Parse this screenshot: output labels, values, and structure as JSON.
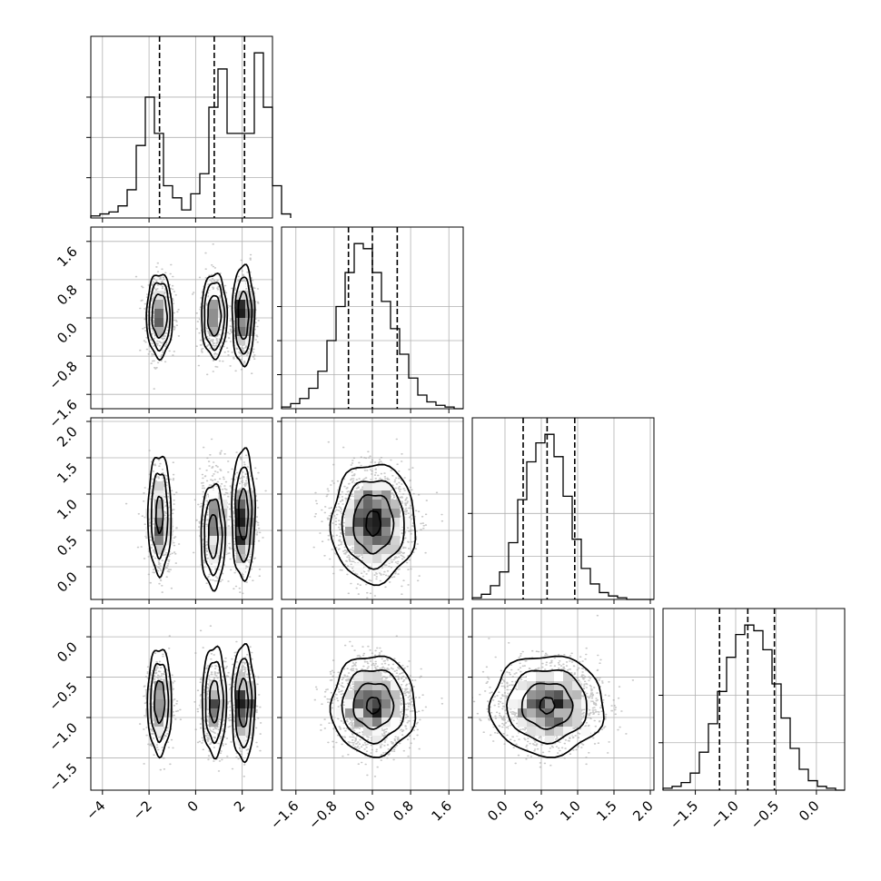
{
  "figure": {
    "type": "corner-plot",
    "grid_on": true
  },
  "chart_data": {
    "type": "corner",
    "parameters": [
      {
        "index": 0,
        "range": [
          -4.5,
          3.3
        ],
        "xticks": [
          -4,
          -2,
          0,
          2
        ],
        "xtick_labels": [
          "−4",
          "−2",
          "0",
          "2"
        ],
        "quantiles": [
          -1.55,
          0.8,
          2.1
        ],
        "hist_edges_start": -4.5,
        "hist_bin_width": 0.39,
        "hist_counts": [
          1,
          2,
          3,
          6,
          14,
          36,
          60,
          42,
          16,
          10,
          4,
          12,
          22,
          55,
          74,
          42,
          42,
          42,
          82,
          55,
          16,
          2
        ]
      },
      {
        "index": 1,
        "range": [
          -1.9,
          1.9
        ],
        "xticks": [
          -1.6,
          -0.8,
          0.0,
          0.8,
          1.6
        ],
        "xtick_labels": [
          "−1.6",
          "−0.8",
          "0.0",
          "0.8",
          "1.6"
        ],
        "yticks": [
          -1.6,
          -0.8,
          0.0,
          0.8,
          1.6
        ],
        "ytick_labels": [
          "−1.6",
          "−0.8",
          "0.0",
          "0.8",
          "1.6"
        ],
        "quantiles": [
          -0.5,
          0.0,
          0.52
        ],
        "hist_edges_start": -1.9,
        "hist_bin_width": 0.19,
        "hist_counts": [
          1,
          3,
          6,
          12,
          22,
          40,
          60,
          80,
          97,
          94,
          80,
          63,
          47,
          32,
          18,
          8,
          4,
          2,
          1,
          0
        ]
      },
      {
        "index": 2,
        "range": [
          -0.45,
          2.05
        ],
        "xticks": [
          0.0,
          0.5,
          1.0,
          1.5,
          2.0
        ],
        "xtick_labels": [
          "0.0",
          "0.5",
          "1.0",
          "1.5",
          "2.0"
        ],
        "yticks": [
          0.0,
          0.5,
          1.0,
          1.5,
          2.0
        ],
        "ytick_labels": [
          "0.0",
          "0.5",
          "1.0",
          "1.5",
          "2.0"
        ],
        "quantiles": [
          0.25,
          0.58,
          0.96
        ],
        "hist_edges_start": -0.45,
        "hist_bin_width": 0.125,
        "hist_counts": [
          1,
          3,
          8,
          16,
          33,
          58,
          80,
          91,
          96,
          83,
          60,
          35,
          18,
          9,
          4,
          2,
          1,
          0,
          0,
          0
        ]
      },
      {
        "index": 3,
        "range": [
          -1.9,
          0.35
        ],
        "xticks": [
          -1.5,
          -1.0,
          -0.5,
          0.0
        ],
        "xtick_labels": [
          "−1.5",
          "−1.0",
          "−0.5",
          "0.0"
        ],
        "yticks": [
          -1.5,
          -1.0,
          -0.5,
          0.0
        ],
        "ytick_labels": [
          "−1.5",
          "−1.0",
          "−0.5",
          "0.0"
        ],
        "quantiles": [
          -1.2,
          -0.85,
          -0.52
        ],
        "hist_edges_start": -1.9,
        "hist_bin_width": 0.1125,
        "hist_counts": [
          1,
          2,
          4,
          9,
          20,
          35,
          52,
          70,
          82,
          87,
          84,
          74,
          56,
          38,
          22,
          11,
          5,
          2,
          1,
          0
        ]
      }
    ],
    "hist_yticks": [
      [
        20,
        40,
        60
      ],
      [
        20,
        40,
        60
      ],
      [
        25,
        50
      ],
      [
        25,
        50
      ]
    ],
    "components": {
      "0": [
        {
          "mu": -1.55,
          "sd": 0.3,
          "w": 0.3
        },
        {
          "mu": 0.8,
          "sd": 0.3,
          "w": 0.3
        },
        {
          "mu": 2.05,
          "sd": 0.25,
          "w": 0.4
        }
      ],
      "1": {
        "mu": 0.02,
        "sd": 0.4
      },
      "2": {
        "mu": 0.6,
        "sd": 0.35
      },
      "3": {
        "mu": -0.85,
        "sd": 0.26
      }
    },
    "contours": {
      "1_0": [
        {
          "cx": -1.55,
          "cy": 0.05,
          "rx": [
            0.32,
            0.45,
            0.56
          ],
          "ry": [
            0.45,
            0.7,
            0.88
          ]
        },
        {
          "cx": 0.8,
          "cy": 0.05,
          "rx": [
            0.28,
            0.43,
            0.55
          ],
          "ry": [
            0.42,
            0.7,
            0.88
          ]
        },
        {
          "cx": 2.05,
          "cy": 0.05,
          "rx": [
            0.22,
            0.35,
            0.48
          ],
          "ry": [
            0.5,
            0.8,
            1.05
          ]
        }
      ],
      "2_0": [
        {
          "cx": -1.55,
          "cy": 0.72,
          "rx": [
            0.15,
            0.35,
            0.5
          ],
          "ry": [
            0.25,
            0.58,
            0.82
          ]
        },
        {
          "cx": 0.75,
          "cy": 0.42,
          "rx": [
            0.2,
            0.38,
            0.52
          ],
          "ry": [
            0.3,
            0.52,
            0.72
          ]
        },
        {
          "cx": 2.05,
          "cy": 0.72,
          "rx": [
            0.2,
            0.35,
            0.5
          ],
          "ry": [
            0.35,
            0.65,
            0.9
          ]
        }
      ],
      "2_1": [
        {
          "cx": 0.02,
          "cy": 0.6,
          "rx": [
            0.15,
            0.42,
            0.65,
            0.88
          ],
          "ry": [
            0.17,
            0.4,
            0.6,
            0.82
          ]
        }
      ],
      "3_0": [
        {
          "cx": -1.55,
          "cy": -0.8,
          "rx": [
            0.22,
            0.38,
            0.52
          ],
          "ry": [
            0.26,
            0.48,
            0.66
          ]
        },
        {
          "cx": 0.8,
          "cy": -0.8,
          "rx": [
            0.2,
            0.38,
            0.52
          ],
          "ry": [
            0.26,
            0.5,
            0.68
          ]
        },
        {
          "cx": 2.05,
          "cy": -0.82,
          "rx": [
            0.2,
            0.35,
            0.5
          ],
          "ry": [
            0.3,
            0.55,
            0.72
          ]
        }
      ],
      "3_1": [
        {
          "cx": 0.02,
          "cy": -0.85,
          "rx": [
            0.14,
            0.42,
            0.65,
            0.88
          ],
          "ry": [
            0.1,
            0.28,
            0.45,
            0.62
          ]
        }
      ],
      "3_2": [
        {
          "cx": 0.58,
          "cy": -0.85,
          "rx": [
            0.1,
            0.35,
            0.55,
            0.78
          ],
          "ry": [
            0.1,
            0.28,
            0.45,
            0.62
          ]
        }
      ]
    }
  }
}
